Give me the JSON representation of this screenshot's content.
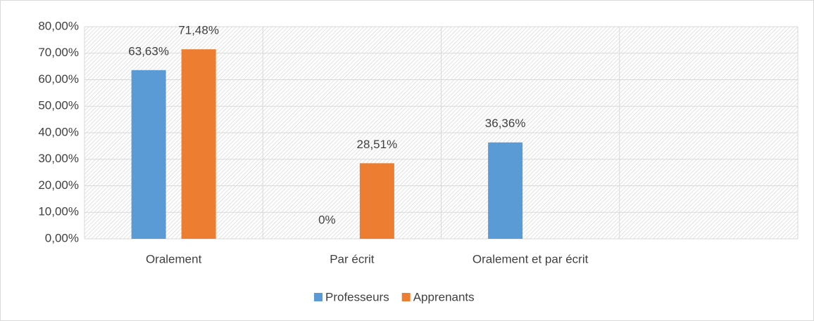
{
  "chart_data": {
    "type": "bar",
    "categories": [
      "Oralement",
      "Par écrit",
      "Oralement et par écrit",
      null
    ],
    "series": [
      {
        "name": "Professeurs",
        "color": "#5b9bd5",
        "values": [
          63.63,
          0,
          36.36,
          null
        ],
        "value_labels": [
          "63,63%",
          "0%",
          "36,36%",
          null
        ]
      },
      {
        "name": "Apprenants",
        "color": "#ed7d31",
        "values": [
          71.48,
          28.51,
          null,
          null
        ],
        "value_labels": [
          "71,48%",
          "28,51%",
          null,
          null
        ]
      }
    ],
    "ylim": [
      0,
      80
    ],
    "yticks": [
      {
        "value": 0,
        "label": "0,00%"
      },
      {
        "value": 10,
        "label": "10,00%"
      },
      {
        "value": 20,
        "label": "20,00%"
      },
      {
        "value": 30,
        "label": "30,00%"
      },
      {
        "value": 40,
        "label": "40,00%"
      },
      {
        "value": 50,
        "label": "50,00%"
      },
      {
        "value": 60,
        "label": "60,00%"
      },
      {
        "value": 70,
        "label": "70,00%"
      },
      {
        "value": 80,
        "label": "80,00%"
      }
    ],
    "grid": true,
    "legend": "bottom"
  }
}
